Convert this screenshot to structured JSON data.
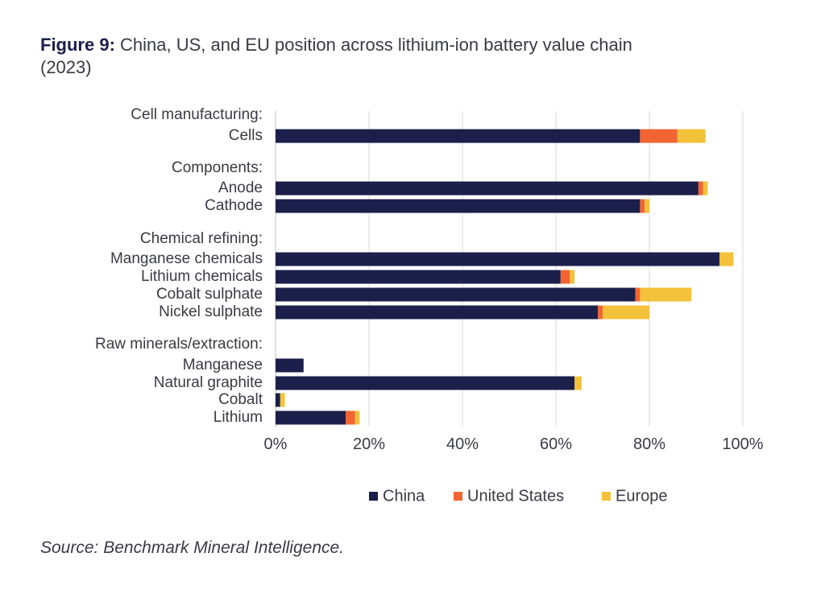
{
  "title": {
    "figure_label": "Figure 9:",
    "text": "China, US, and EU position across lithium-ion battery value chain (2023)"
  },
  "source": "Source: Benchmark Mineral Intelligence.",
  "colors": {
    "China": "#1b1f4a",
    "United States": "#f26532",
    "Europe": "#f3c13a",
    "grid": "#d9d9d9"
  },
  "chart_data": {
    "type": "bar",
    "orientation": "horizontal",
    "stacked": true,
    "xlim": [
      0,
      100
    ],
    "xticks": [
      "0%",
      "20%",
      "40%",
      "60%",
      "80%",
      "100%"
    ],
    "grid": true,
    "legend_position": "bottom",
    "groups": [
      {
        "header": "Cell manufacturing:",
        "categories": [
          "Cells"
        ]
      },
      {
        "header": "Components:",
        "categories": [
          "Anode",
          "Cathode"
        ]
      },
      {
        "header": "Chemical refining:",
        "categories": [
          "Manganese chemicals",
          "Lithium chemicals",
          "Cobalt sulphate",
          "Nickel sulphate"
        ]
      },
      {
        "header": "Raw minerals/extraction:",
        "categories": [
          "Manganese",
          "Natural graphite",
          "Cobalt",
          "Lithium"
        ]
      }
    ],
    "categories": [
      "Cells",
      "Anode",
      "Cathode",
      "Manganese chemicals",
      "Lithium chemicals",
      "Cobalt sulphate",
      "Nickel sulphate",
      "Manganese",
      "Natural graphite",
      "Cobalt",
      "Lithium"
    ],
    "series": [
      {
        "name": "China",
        "values": [
          78,
          90.5,
          78,
          95,
          61,
          77,
          69,
          6,
          64,
          1,
          15
        ]
      },
      {
        "name": "United States",
        "values": [
          8,
          1,
          1,
          0,
          2,
          1,
          1,
          0,
          0,
          0,
          2
        ]
      },
      {
        "name": "Europe",
        "values": [
          6,
          1,
          1,
          3,
          1,
          11,
          10,
          0,
          1.5,
          1,
          1
        ]
      }
    ]
  }
}
